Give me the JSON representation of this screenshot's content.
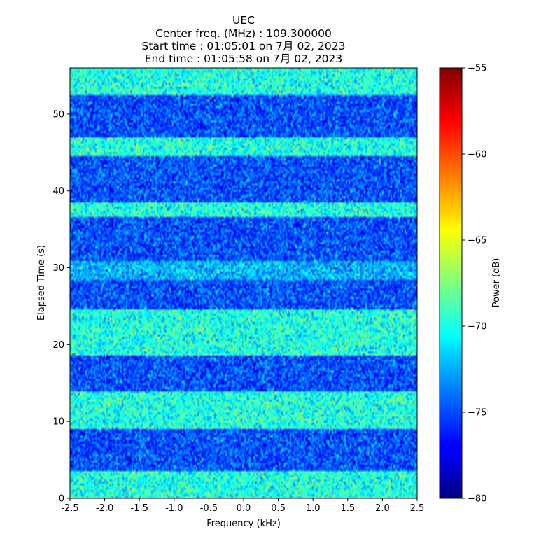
{
  "chart_data": {
    "type": "heatmap",
    "title_lines": [
      "UEC",
      "Center freq. (MHz) : 109.300000",
      "Start time         : 01:05:01 on 7月 02, 2023",
      "End   time         : 01:05:58 on 7月 02, 2023"
    ],
    "xlabel": "Frequency (kHz)",
    "ylabel": "Elapsed Time (s)",
    "xlim": [
      -2.5,
      2.5
    ],
    "ylim": [
      0,
      56
    ],
    "x_ticks": [
      "-2.5",
      "-2.0",
      "-1.5",
      "-1.0",
      "-0.5",
      "0.0",
      "0.5",
      "1.0",
      "1.5",
      "2.0",
      "2.5"
    ],
    "y_ticks": [
      "0",
      "10",
      "20",
      "30",
      "40",
      "50"
    ],
    "colorbar": {
      "label": "Power (dB)",
      "range": [
        -80,
        -55
      ],
      "ticks": [
        "−55",
        "−60",
        "−65",
        "−70",
        "−75",
        "−80"
      ],
      "colormap": "jet"
    },
    "bands": [
      {
        "t0": 0,
        "t1": 3.5,
        "level": "bright"
      },
      {
        "t0": 3.5,
        "t1": 9,
        "level": "dark"
      },
      {
        "t0": 9,
        "t1": 14,
        "level": "bright"
      },
      {
        "t0": 14,
        "t1": 18.5,
        "level": "dark"
      },
      {
        "t0": 18.5,
        "t1": 24.5,
        "level": "bright"
      },
      {
        "t0": 24.5,
        "t1": 28.5,
        "level": "dark"
      },
      {
        "t0": 28.5,
        "t1": 31,
        "level": "mid"
      },
      {
        "t0": 31,
        "t1": 36.5,
        "level": "dark"
      },
      {
        "t0": 36.5,
        "t1": 38.5,
        "level": "bright"
      },
      {
        "t0": 38.5,
        "t1": 44.5,
        "level": "dark"
      },
      {
        "t0": 44.5,
        "t1": 47,
        "level": "bright"
      },
      {
        "t0": 47,
        "t1": 52.5,
        "level": "dark"
      },
      {
        "t0": 52.5,
        "t1": 56,
        "level": "bright"
      }
    ]
  }
}
